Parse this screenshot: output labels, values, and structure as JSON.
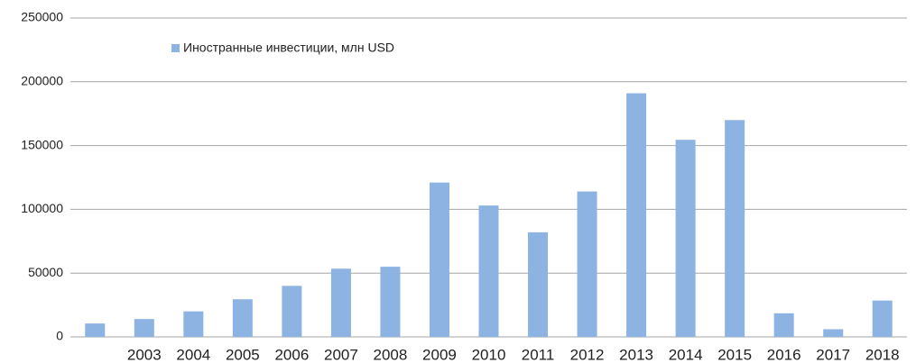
{
  "chart_data": {
    "type": "bar",
    "categories": [
      null,
      "2003",
      "2004",
      "2005",
      "2006",
      "2007",
      "2008",
      "2009",
      "2010",
      "2011",
      "2012",
      "2013",
      "2014",
      "2015",
      "2016",
      "2017",
      "2018"
    ],
    "series": [
      {
        "name": "Иностранные инвестиции, млн USD",
        "color": "#8db3e2",
        "values": [
          10500,
          14000,
          20000,
          29500,
          40000,
          53500,
          55000,
          121000,
          103000,
          82000,
          114000,
          191000,
          154500,
          170000,
          18500,
          6000,
          28500
        ]
      }
    ],
    "ylim": [
      0,
      250000
    ],
    "yticks": [
      0,
      50000,
      100000,
      150000,
      200000,
      250000
    ],
    "grid": true,
    "legend": "top-left"
  }
}
